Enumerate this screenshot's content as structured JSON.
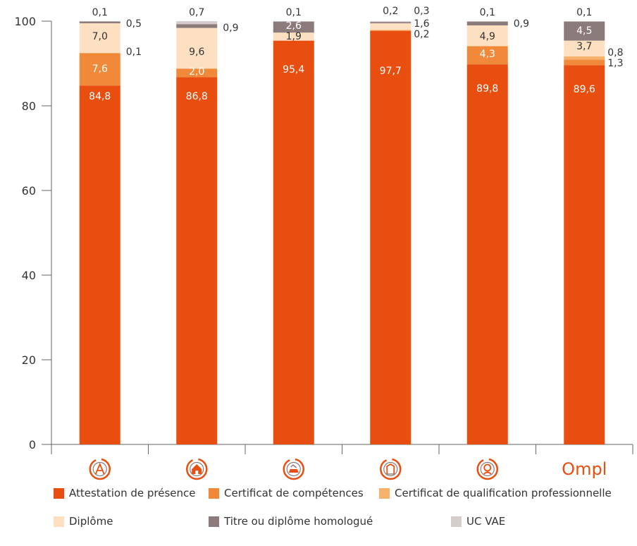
{
  "chart_data": {
    "type": "bar",
    "stacked": true,
    "categories": [
      "",
      "",
      "",
      "",
      "",
      ""
    ],
    "category_icons": [
      "architecture-icon",
      "real-estate-icon",
      "automotive-expert-icon",
      "legal-icon",
      "health-icon",
      "ompl-logo"
    ],
    "logo_text": "Ompl",
    "ylim": [
      0,
      100
    ],
    "yticks": [
      "0",
      "20",
      "40",
      "60",
      "80",
      "100"
    ],
    "legend_placement": "bottom",
    "series": [
      {
        "name": "Attestation de présence",
        "color": "#e84e0f",
        "values": [
          84.8,
          86.8,
          95.4,
          97.7,
          89.8,
          89.6
        ],
        "labels": [
          "84,8",
          "86,8",
          "95,4",
          "97,7",
          "89,8",
          "89,6"
        ]
      },
      {
        "name": "Certificat de compétences",
        "color": "#f08a3a",
        "values": [
          7.6,
          2.0,
          0,
          0.2,
          4.3,
          1.3
        ],
        "labels": [
          "7,6",
          "2,0",
          "",
          "0,2",
          "4,3",
          "1,3"
        ]
      },
      {
        "name": "Certificat de qualification professionnelle",
        "color": "#f6b26b",
        "values": [
          0.1,
          0,
          0,
          0,
          0,
          0.8
        ],
        "labels": [
          "0,1",
          "",
          "",
          "",
          "",
          "0,8"
        ]
      },
      {
        "name": "Diplôme",
        "color": "#fde0c2",
        "values": [
          7.0,
          9.6,
          1.9,
          1.6,
          4.9,
          3.7
        ],
        "labels": [
          "7,0",
          "9,6",
          "1,9",
          "1,6",
          "4,9",
          "3,7"
        ]
      },
      {
        "name": "Titre ou diplôme homologué",
        "color": "#8c7b7b",
        "values": [
          0.5,
          0.9,
          2.6,
          0.3,
          0.9,
          4.5
        ],
        "labels": [
          "0,5",
          "0,9",
          "2,6",
          "0,3",
          "0,9",
          "4,5"
        ]
      },
      {
        "name": "UC VAE",
        "color": "#d5cccc",
        "values": [
          0.1,
          0.7,
          0.1,
          0.2,
          0.1,
          0.1
        ],
        "labels": [
          "0,1",
          "0,7",
          "0,1",
          "0,2",
          "0,1",
          "0,1"
        ]
      }
    ]
  }
}
